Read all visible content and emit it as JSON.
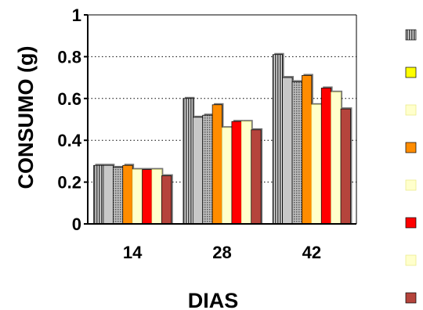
{
  "chart_data": {
    "type": "bar",
    "title": "",
    "xlabel": "DIAS",
    "ylabel": "CONSUMO (g)",
    "categories": [
      "14",
      "28",
      "42"
    ],
    "ylim": [
      0,
      1
    ],
    "yticks": [
      0,
      0.2,
      0.4,
      0.6,
      0.8,
      1
    ],
    "ytick_labels": [
      "0",
      "0.2",
      "0.4",
      "0.6",
      "0.8",
      "1"
    ],
    "grid": "horizontal dotted",
    "legend": "right, swatches only (no text)",
    "series": [
      {
        "values": [
          0.28,
          0.6,
          0.81
        ],
        "color": "#6e6e6e",
        "pattern": "vertical-stripes"
      },
      {
        "values": [
          0.28,
          0.51,
          0.7
        ],
        "color": "#c8c8c8"
      },
      {
        "values": [
          0.27,
          0.52,
          0.68
        ],
        "color": "#8c8c8c",
        "pattern": "dots"
      },
      {
        "values": [
          0.28,
          0.57,
          0.71
        ],
        "color": "#ff8c00"
      },
      {
        "values": [
          0.26,
          0.46,
          0.57
        ],
        "color": "#ffffcc"
      },
      {
        "values": [
          0.26,
          0.49,
          0.65
        ],
        "color": "#ff0000"
      },
      {
        "values": [
          0.26,
          0.49,
          0.63
        ],
        "color": "#ffffcc"
      },
      {
        "values": [
          0.23,
          0.45,
          0.55
        ],
        "color": "#b5443c"
      }
    ],
    "legend_swatches": [
      "#6e6e6e",
      "#ffff00",
      "#ffffcc",
      "#ff8c00",
      "#ffffcc",
      "#ff0000",
      "#ffffcc",
      "#b5443c"
    ]
  }
}
